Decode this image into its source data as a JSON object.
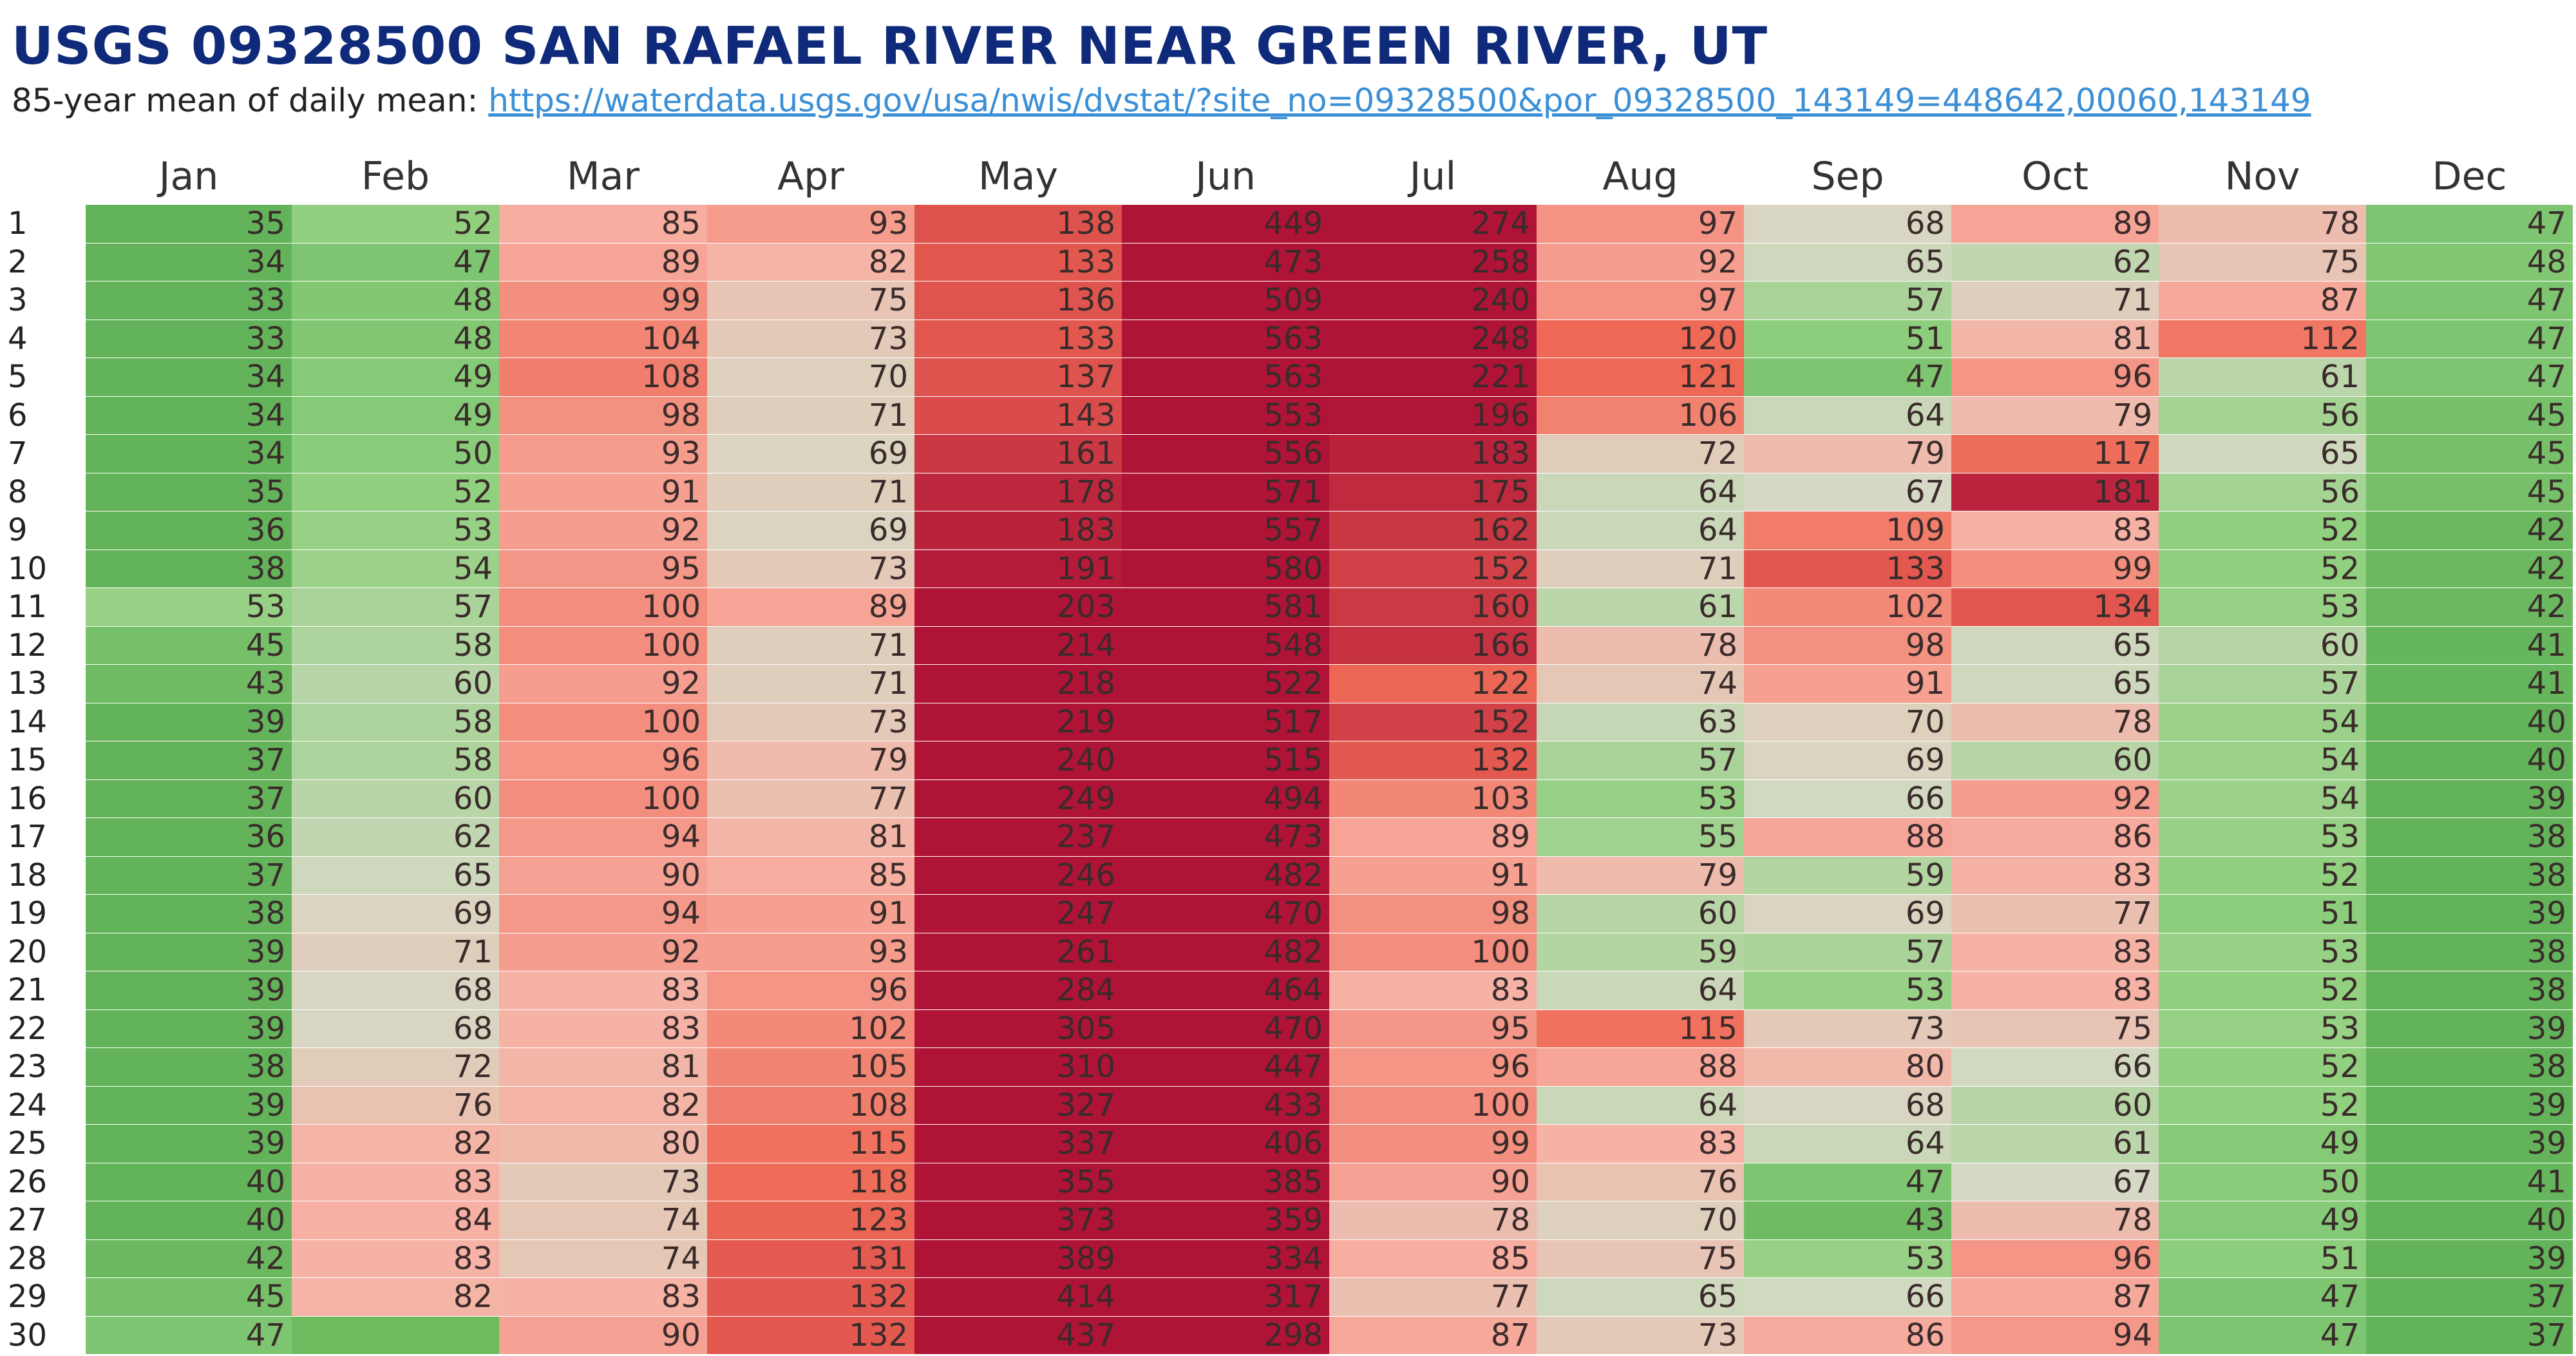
{
  "title": "USGS 09328500 SAN RAFAEL RIVER NEAR GREEN RIVER, UT",
  "subtitle_prefix": "85-year mean of daily mean:",
  "subtitle_link": "https://waterdata.usgs.gov/usa/nwis/dvstat/?site_no=09328500&por_09328500_143149=448642,00060,143149",
  "chart_data": {
    "type": "heatmap",
    "columns": [
      "Jan",
      "Feb",
      "Mar",
      "Apr",
      "May",
      "Jun",
      "Jul",
      "Aug",
      "Sep",
      "Oct",
      "Nov",
      "Dec"
    ],
    "rows": [
      "1",
      "2",
      "3",
      "4",
      "5",
      "6",
      "7",
      "8",
      "9",
      "10",
      "11",
      "12",
      "13",
      "14",
      "15",
      "16",
      "17",
      "18",
      "19",
      "20",
      "21",
      "22",
      "23",
      "24",
      "25",
      "26",
      "27",
      "28",
      "29",
      "30"
    ],
    "values": [
      [
        35,
        52,
        85,
        93,
        138,
        449,
        274,
        97,
        68,
        89,
        78,
        47
      ],
      [
        34,
        47,
        89,
        82,
        133,
        473,
        258,
        92,
        65,
        62,
        75,
        48
      ],
      [
        33,
        48,
        99,
        75,
        136,
        509,
        240,
        97,
        57,
        71,
        87,
        47
      ],
      [
        33,
        48,
        104,
        73,
        133,
        563,
        248,
        120,
        51,
        81,
        112,
        47
      ],
      [
        34,
        49,
        108,
        70,
        137,
        563,
        221,
        121,
        47,
        96,
        61,
        47
      ],
      [
        34,
        49,
        98,
        71,
        143,
        553,
        196,
        106,
        64,
        79,
        56,
        45
      ],
      [
        34,
        50,
        93,
        69,
        161,
        556,
        183,
        72,
        79,
        117,
        65,
        45
      ],
      [
        35,
        52,
        91,
        71,
        178,
        571,
        175,
        64,
        67,
        181,
        56,
        45
      ],
      [
        36,
        53,
        92,
        69,
        183,
        557,
        162,
        64,
        109,
        83,
        52,
        42
      ],
      [
        38,
        54,
        95,
        73,
        191,
        580,
        152,
        71,
        133,
        99,
        52,
        42
      ],
      [
        53,
        57,
        100,
        89,
        203,
        581,
        160,
        61,
        102,
        134,
        53,
        42
      ],
      [
        45,
        58,
        100,
        71,
        214,
        548,
        166,
        78,
        98,
        65,
        60,
        41
      ],
      [
        43,
        60,
        92,
        71,
        218,
        522,
        122,
        74,
        91,
        65,
        57,
        41
      ],
      [
        39,
        58,
        100,
        73,
        219,
        517,
        152,
        63,
        70,
        78,
        54,
        40
      ],
      [
        37,
        58,
        96,
        79,
        240,
        515,
        132,
        57,
        69,
        60,
        54,
        40
      ],
      [
        37,
        60,
        100,
        77,
        249,
        494,
        103,
        53,
        66,
        92,
        54,
        39
      ],
      [
        36,
        62,
        94,
        81,
        237,
        473,
        89,
        55,
        88,
        86,
        53,
        38
      ],
      [
        37,
        65,
        90,
        85,
        246,
        482,
        91,
        79,
        59,
        83,
        52,
        38
      ],
      [
        38,
        69,
        94,
        91,
        247,
        470,
        98,
        60,
        69,
        77,
        51,
        39
      ],
      [
        39,
        71,
        92,
        93,
        261,
        482,
        100,
        59,
        57,
        83,
        53,
        38
      ],
      [
        39,
        68,
        83,
        96,
        284,
        464,
        83,
        64,
        53,
        83,
        52,
        38
      ],
      [
        39,
        68,
        83,
        102,
        305,
        470,
        95,
        115,
        73,
        75,
        53,
        39
      ],
      [
        38,
        72,
        81,
        105,
        310,
        447,
        96,
        88,
        80,
        66,
        52,
        38
      ],
      [
        39,
        76,
        82,
        108,
        327,
        433,
        100,
        64,
        68,
        60,
        52,
        39
      ],
      [
        39,
        82,
        80,
        115,
        337,
        406,
        99,
        83,
        64,
        61,
        49,
        39
      ],
      [
        40,
        83,
        73,
        118,
        355,
        385,
        90,
        76,
        47,
        67,
        50,
        41
      ],
      [
        40,
        84,
        74,
        123,
        373,
        359,
        78,
        70,
        43,
        78,
        49,
        40
      ],
      [
        42,
        83,
        74,
        131,
        389,
        334,
        85,
        75,
        53,
        96,
        51,
        39
      ],
      [
        45,
        82,
        83,
        132,
        414,
        317,
        77,
        65,
        66,
        87,
        47,
        37
      ],
      [
        47,
        null,
        90,
        132,
        437,
        298,
        87,
        73,
        86,
        94,
        47,
        37
      ]
    ],
    "colors": {
      "low": "#62b35a",
      "low_light": "#8fd07e",
      "mid": "#d6d9c5",
      "high_light": "#f7b0a3",
      "high": "#ef6a56",
      "max": "#af1336",
      "empty": "#6dbb5e"
    }
  }
}
